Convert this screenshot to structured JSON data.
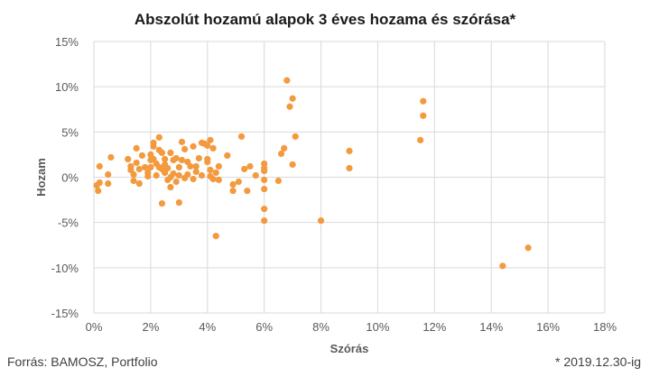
{
  "title": "Abszolút hozamú alapok 3 éves hozama és szórása*",
  "footer": {
    "source": "Forrás: BAMOSZ, Portfolio",
    "note": "* 2019.12.30-ig"
  },
  "chart_data": {
    "type": "scatter",
    "title": "Abszolút hozamú alapok 3 éves hozama és szórása*",
    "xlabel": "Szórás",
    "ylabel": "Hozam",
    "xlim": [
      0,
      18
    ],
    "ylim": [
      -15,
      15
    ],
    "x_ticks": [
      0,
      2,
      4,
      6,
      8,
      10,
      12,
      14,
      16,
      18
    ],
    "y_ticks": [
      -15,
      -10,
      -5,
      0,
      5,
      10,
      15
    ],
    "x_tick_labels": [
      "0%",
      "2%",
      "4%",
      "6%",
      "8%",
      "10%",
      "12%",
      "14%",
      "16%",
      "18%"
    ],
    "y_tick_labels": [
      "-15%",
      "-10%",
      "-5%",
      "0%",
      "5%",
      "10%",
      "15%"
    ],
    "grid": true,
    "legend": "none",
    "color": "#F39A3F",
    "points": [
      [
        0.1,
        -0.9
      ],
      [
        0.2,
        -0.6
      ],
      [
        0.2,
        1.2
      ],
      [
        0.15,
        -1.5
      ],
      [
        0.5,
        0.3
      ],
      [
        0.5,
        -0.7
      ],
      [
        0.6,
        2.2
      ],
      [
        1.2,
        2.0
      ],
      [
        1.3,
        1.2
      ],
      [
        1.3,
        0.8
      ],
      [
        1.4,
        0.3
      ],
      [
        1.4,
        -0.4
      ],
      [
        1.5,
        3.2
      ],
      [
        1.5,
        1.6
      ],
      [
        1.6,
        0.9
      ],
      [
        1.6,
        -0.7
      ],
      [
        1.7,
        2.4
      ],
      [
        1.8,
        1.1
      ],
      [
        1.9,
        0.5
      ],
      [
        1.9,
        0.1
      ],
      [
        2.0,
        1.1
      ],
      [
        2.0,
        2.5
      ],
      [
        2.0,
        1.9
      ],
      [
        2.1,
        3.4
      ],
      [
        2.1,
        3.8
      ],
      [
        2.1,
        2.0
      ],
      [
        2.2,
        1.5
      ],
      [
        2.2,
        0.2
      ],
      [
        2.3,
        3.0
      ],
      [
        2.3,
        1.1
      ],
      [
        2.3,
        4.4
      ],
      [
        2.4,
        0.9
      ],
      [
        2.4,
        2.7
      ],
      [
        2.5,
        2.0
      ],
      [
        2.5,
        0.5
      ],
      [
        2.5,
        1.4
      ],
      [
        2.4,
        -2.9
      ],
      [
        2.6,
        1.0
      ],
      [
        2.6,
        -0.3
      ],
      [
        2.7,
        0.0
      ],
      [
        2.7,
        2.7
      ],
      [
        2.7,
        -1.1
      ],
      [
        2.8,
        0.4
      ],
      [
        2.8,
        1.9
      ],
      [
        2.9,
        2.1
      ],
      [
        2.9,
        -0.5
      ],
      [
        3.0,
        1.1
      ],
      [
        3.0,
        0.2
      ],
      [
        3.1,
        3.9
      ],
      [
        3.1,
        1.9
      ],
      [
        3.2,
        3.1
      ],
      [
        3.2,
        -0.1
      ],
      [
        3.0,
        -2.8
      ],
      [
        3.3,
        0.3
      ],
      [
        3.3,
        1.7
      ],
      [
        3.4,
        1.2
      ],
      [
        3.5,
        3.4
      ],
      [
        3.5,
        -0.2
      ],
      [
        3.6,
        1.2
      ],
      [
        3.6,
        0.6
      ],
      [
        3.7,
        2.1
      ],
      [
        3.8,
        3.8
      ],
      [
        3.8,
        0.2
      ],
      [
        3.9,
        3.7
      ],
      [
        4.0,
        1.7
      ],
      [
        4.0,
        2.0
      ],
      [
        4.0,
        3.5
      ],
      [
        4.1,
        4.1
      ],
      [
        4.1,
        0.8
      ],
      [
        4.1,
        0.1
      ],
      [
        4.2,
        3.2
      ],
      [
        4.2,
        -0.2
      ],
      [
        4.3,
        0.5
      ],
      [
        4.3,
        -6.5
      ],
      [
        4.4,
        1.2
      ],
      [
        4.4,
        -0.3
      ],
      [
        4.7,
        2.4
      ],
      [
        4.9,
        -0.8
      ],
      [
        4.9,
        -1.5
      ],
      [
        5.1,
        -0.5
      ],
      [
        5.2,
        4.5
      ],
      [
        5.3,
        0.9
      ],
      [
        5.4,
        -1.5
      ],
      [
        5.5,
        1.2
      ],
      [
        5.7,
        0.2
      ],
      [
        6.0,
        1.5
      ],
      [
        6.0,
        1.0
      ],
      [
        6.0,
        0.7
      ],
      [
        6.0,
        -0.3
      ],
      [
        6.0,
        -1.3
      ],
      [
        6.0,
        -3.5
      ],
      [
        6.0,
        -4.8
      ],
      [
        6.5,
        -0.4
      ],
      [
        6.6,
        2.6
      ],
      [
        6.7,
        3.2
      ],
      [
        6.8,
        10.7
      ],
      [
        6.9,
        7.8
      ],
      [
        7.0,
        8.7
      ],
      [
        7.0,
        1.4
      ],
      [
        7.1,
        4.5
      ],
      [
        8.0,
        -4.8
      ],
      [
        9.0,
        2.9
      ],
      [
        9.0,
        1.0
      ],
      [
        11.5,
        4.1
      ],
      [
        11.6,
        6.8
      ],
      [
        11.6,
        8.4
      ],
      [
        14.4,
        -9.8
      ],
      [
        15.3,
        -7.8
      ]
    ]
  }
}
